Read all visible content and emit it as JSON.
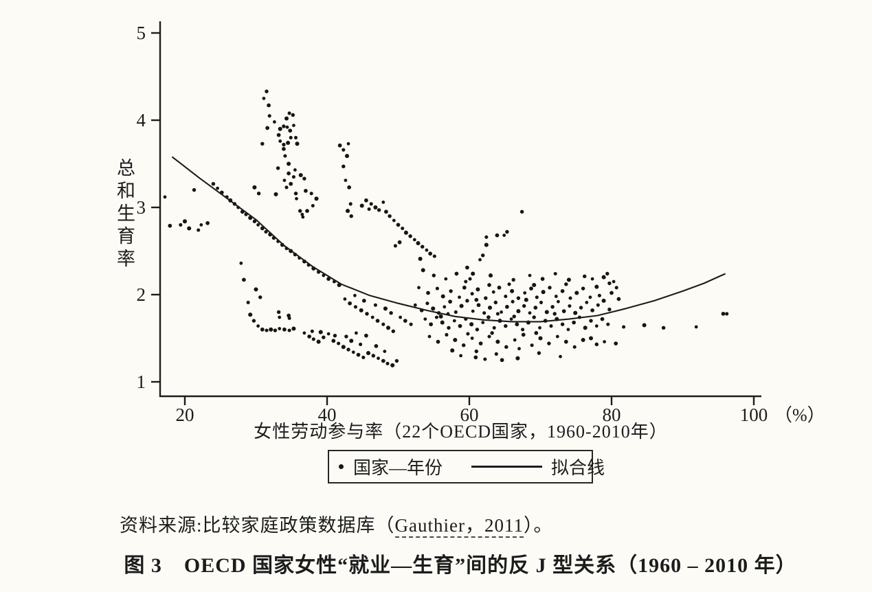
{
  "colors": {
    "paper": "#fcfbf6",
    "ink": "#1c1c1c",
    "dot": "#161616"
  },
  "chart_data": {
    "type": "scatter",
    "x_axis": {
      "label": "女性劳动参与率（22个OECD国家，1960-2010年）",
      "unit": "（%）",
      "ticks": [
        20,
        40,
        60,
        80,
        100
      ],
      "range": [
        16.5,
        101
      ]
    },
    "y_axis": {
      "label": "总和生育率",
      "ticks": [
        1,
        2,
        3,
        4,
        5
      ],
      "range": [
        0.83,
        5.12
      ]
    },
    "legend": [
      {
        "marker": "dot",
        "label": "国家—年份"
      },
      {
        "marker": "line",
        "label": "拟合线"
      }
    ],
    "fitted_curve": [
      [
        18.2,
        3.58
      ],
      [
        22,
        3.34
      ],
      [
        26,
        3.1
      ],
      [
        30,
        2.86
      ],
      [
        34,
        2.56
      ],
      [
        38,
        2.32
      ],
      [
        42,
        2.12
      ],
      [
        46,
        1.99
      ],
      [
        50,
        1.9
      ],
      [
        54,
        1.82
      ],
      [
        58,
        1.75
      ],
      [
        62,
        1.71
      ],
      [
        66,
        1.69
      ],
      [
        70,
        1.69
      ],
      [
        74,
        1.72
      ],
      [
        78,
        1.76
      ],
      [
        82,
        1.84
      ],
      [
        86,
        1.93
      ],
      [
        90,
        2.04
      ],
      [
        93,
        2.13
      ],
      [
        96,
        2.24
      ]
    ],
    "scatter_points": [
      [
        17.2,
        3.12
      ],
      [
        17.9,
        2.79
      ],
      [
        19.4,
        2.8
      ],
      [
        20.6,
        2.76
      ],
      [
        21.3,
        3.2
      ],
      [
        22.3,
        2.8
      ],
      [
        23.2,
        2.82
      ],
      [
        21.9,
        2.74
      ],
      [
        20.0,
        2.84
      ],
      [
        24.0,
        3.27
      ],
      [
        24.6,
        3.22
      ],
      [
        25.2,
        3.17
      ],
      [
        25.9,
        3.12
      ],
      [
        26.4,
        3.08
      ],
      [
        27.0,
        3.04
      ],
      [
        27.5,
        3.0
      ],
      [
        28.1,
        2.95
      ],
      [
        28.6,
        2.92
      ],
      [
        29.2,
        2.88
      ],
      [
        29.8,
        2.84
      ],
      [
        30.3,
        2.8
      ],
      [
        30.9,
        2.76
      ],
      [
        31.4,
        2.72
      ],
      [
        32.0,
        2.69
      ],
      [
        32.5,
        2.65
      ],
      [
        33.1,
        2.61
      ],
      [
        33.7,
        2.57
      ],
      [
        34.3,
        2.53
      ],
      [
        34.9,
        2.5
      ],
      [
        35.5,
        2.46
      ],
      [
        36.1,
        2.42
      ],
      [
        36.8,
        2.38
      ],
      [
        37.4,
        2.34
      ],
      [
        38.1,
        2.3
      ],
      [
        38.8,
        2.26
      ],
      [
        39.5,
        2.22
      ],
      [
        40.2,
        2.18
      ],
      [
        41.0,
        2.15
      ],
      [
        41.7,
        2.11
      ],
      [
        31.5,
        4.33
      ],
      [
        31.1,
        4.25
      ],
      [
        31.8,
        4.17
      ],
      [
        31.9,
        4.05
      ],
      [
        34.3,
        4.02
      ],
      [
        35.2,
        4.06
      ],
      [
        35.3,
        3.94
      ],
      [
        31.6,
        3.91
      ],
      [
        34.7,
        4.08
      ],
      [
        33.4,
        3.9
      ],
      [
        33.9,
        3.93
      ],
      [
        34.4,
        3.92
      ],
      [
        34.8,
        3.88
      ],
      [
        34.9,
        3.8
      ],
      [
        34.5,
        3.74
      ],
      [
        33.9,
        3.72
      ],
      [
        33.4,
        3.76
      ],
      [
        33.2,
        3.83
      ],
      [
        35.6,
        3.8
      ],
      [
        35.8,
        3.73
      ],
      [
        30.9,
        3.73
      ],
      [
        32.6,
        3.98
      ],
      [
        33.9,
        3.67
      ],
      [
        34.1,
        3.59
      ],
      [
        34.6,
        3.5
      ],
      [
        33.1,
        3.45
      ],
      [
        35.5,
        3.43
      ],
      [
        34.6,
        3.39
      ],
      [
        35.3,
        3.35
      ],
      [
        36.3,
        3.37
      ],
      [
        36.8,
        3.33
      ],
      [
        34.0,
        3.31
      ],
      [
        34.9,
        3.27
      ],
      [
        34.3,
        3.23
      ],
      [
        32.8,
        3.15
      ],
      [
        35.6,
        3.16
      ],
      [
        35.7,
        3.1
      ],
      [
        37.0,
        3.19
      ],
      [
        37.8,
        3.16
      ],
      [
        38.5,
        3.1
      ],
      [
        36.2,
        2.96
      ],
      [
        36.5,
        2.92
      ],
      [
        37.2,
        2.96
      ],
      [
        38.0,
        3.02
      ],
      [
        29.8,
        3.23
      ],
      [
        30.4,
        3.16
      ],
      [
        36.6,
        2.89
      ],
      [
        41.8,
        3.71
      ],
      [
        42.3,
        3.66
      ],
      [
        42.8,
        3.59
      ],
      [
        42.3,
        3.47
      ],
      [
        42.6,
        3.31
      ],
      [
        43.1,
        3.23
      ],
      [
        43.3,
        3.04
      ],
      [
        42.9,
        2.96
      ],
      [
        43.4,
        2.9
      ],
      [
        43.0,
        3.73
      ],
      [
        45.5,
        3.08
      ],
      [
        46.2,
        3.04
      ],
      [
        46.8,
        3.0
      ],
      [
        47.3,
        2.97
      ],
      [
        47.9,
        3.06
      ],
      [
        48.3,
        2.95
      ],
      [
        45.9,
        2.98
      ],
      [
        44.9,
        3.02
      ],
      [
        48.8,
        2.9
      ],
      [
        49.4,
        2.85
      ],
      [
        50.0,
        2.8
      ],
      [
        50.6,
        2.76
      ],
      [
        51.1,
        2.71
      ],
      [
        51.7,
        2.67
      ],
      [
        52.3,
        2.63
      ],
      [
        50.2,
        2.6
      ],
      [
        49.6,
        2.56
      ],
      [
        52.8,
        2.59
      ],
      [
        53.4,
        2.55
      ],
      [
        54.0,
        2.51
      ],
      [
        54.5,
        2.47
      ],
      [
        55.1,
        2.44
      ],
      [
        53.1,
        2.41
      ],
      [
        65.3,
        2.72
      ],
      [
        64.9,
        2.68
      ],
      [
        63.9,
        2.68
      ],
      [
        62.4,
        2.66
      ],
      [
        62.4,
        2.57
      ],
      [
        61.9,
        2.45
      ],
      [
        61.5,
        2.4
      ],
      [
        59.7,
        2.31
      ],
      [
        59.5,
        2.15
      ],
      [
        60.5,
        2.24
      ],
      [
        67.4,
        2.95
      ],
      [
        27.9,
        2.36
      ],
      [
        28.3,
        2.17
      ],
      [
        28.9,
        1.91
      ],
      [
        29.2,
        1.77
      ],
      [
        29.7,
        1.7
      ],
      [
        30.3,
        1.64
      ],
      [
        30.9,
        1.6
      ],
      [
        31.5,
        1.59
      ],
      [
        32.1,
        1.6
      ],
      [
        32.7,
        1.59
      ],
      [
        33.3,
        1.61
      ],
      [
        34.0,
        1.6
      ],
      [
        34.7,
        1.59
      ],
      [
        35.3,
        1.61
      ],
      [
        33.2,
        1.8
      ],
      [
        33.3,
        1.74
      ],
      [
        34.6,
        1.76
      ],
      [
        34.7,
        1.73
      ],
      [
        30.0,
        2.06
      ],
      [
        30.6,
        1.97
      ],
      [
        36.8,
        1.56
      ],
      [
        37.5,
        1.52
      ],
      [
        38.1,
        1.49
      ],
      [
        38.8,
        1.46
      ],
      [
        39.5,
        1.51
      ],
      [
        40.2,
        1.55
      ],
      [
        40.9,
        1.47
      ],
      [
        41.6,
        1.44
      ],
      [
        42.3,
        1.4
      ],
      [
        43.0,
        1.37
      ],
      [
        43.7,
        1.34
      ],
      [
        44.4,
        1.31
      ],
      [
        45.1,
        1.28
      ],
      [
        45.8,
        1.33
      ],
      [
        46.5,
        1.3
      ],
      [
        47.2,
        1.27
      ],
      [
        47.9,
        1.24
      ],
      [
        48.5,
        1.21
      ],
      [
        49.2,
        1.19
      ],
      [
        49.8,
        1.24
      ],
      [
        48.1,
        1.35
      ],
      [
        46.9,
        1.41
      ],
      [
        44.7,
        1.43
      ],
      [
        43.4,
        1.47
      ],
      [
        42.7,
        1.52
      ],
      [
        44.1,
        1.56
      ],
      [
        45.5,
        1.53
      ],
      [
        37.9,
        1.58
      ],
      [
        39.1,
        1.57
      ],
      [
        41.1,
        1.53
      ],
      [
        42.5,
        1.95
      ],
      [
        43.2,
        1.9
      ],
      [
        44.0,
        1.86
      ],
      [
        44.8,
        1.82
      ],
      [
        45.6,
        1.78
      ],
      [
        46.4,
        1.74
      ],
      [
        47.1,
        1.7
      ],
      [
        47.9,
        1.66
      ],
      [
        48.6,
        1.62
      ],
      [
        49.3,
        1.58
      ],
      [
        43.9,
        1.99
      ],
      [
        45.2,
        1.93
      ],
      [
        46.8,
        1.88
      ],
      [
        48.2,
        1.84
      ],
      [
        49.0,
        1.79
      ],
      [
        50.3,
        1.74
      ],
      [
        51.0,
        1.7
      ],
      [
        51.8,
        1.66
      ],
      [
        53.5,
        2.28
      ],
      [
        55.0,
        2.22
      ],
      [
        56.7,
        2.18
      ],
      [
        58.2,
        2.24
      ],
      [
        60.1,
        2.18
      ],
      [
        63.0,
        2.22
      ],
      [
        66.2,
        2.17
      ],
      [
        68.5,
        2.22
      ],
      [
        70.3,
        2.18
      ],
      [
        72.1,
        2.24
      ],
      [
        74.0,
        2.17
      ],
      [
        76.2,
        2.21
      ],
      [
        52.9,
        2.08
      ],
      [
        54.2,
        2.02
      ],
      [
        55.5,
        2.07
      ],
      [
        56.3,
        1.98
      ],
      [
        57.4,
        2.04
      ],
      [
        58.6,
        1.97
      ],
      [
        59.3,
        2.08
      ],
      [
        60.4,
        2.01
      ],
      [
        61.2,
        2.06
      ],
      [
        62.3,
        1.96
      ],
      [
        63.4,
        2.03
      ],
      [
        64.2,
        2.08
      ],
      [
        65.1,
        1.98
      ],
      [
        66.0,
        2.04
      ],
      [
        66.9,
        1.96
      ],
      [
        67.8,
        2.02
      ],
      [
        68.7,
        2.07
      ],
      [
        69.5,
        1.97
      ],
      [
        70.4,
        2.03
      ],
      [
        71.3,
        2.08
      ],
      [
        72.2,
        1.98
      ],
      [
        73.1,
        2.04
      ],
      [
        74.2,
        1.96
      ],
      [
        75.1,
        2.02
      ],
      [
        76.0,
        2.07
      ],
      [
        77.0,
        1.97
      ],
      [
        62.8,
        2.11
      ],
      [
        65.6,
        2.12
      ],
      [
        69.1,
        2.11
      ],
      [
        73.6,
        2.12
      ],
      [
        52.4,
        1.88
      ],
      [
        53.3,
        1.82
      ],
      [
        54.1,
        1.9
      ],
      [
        54.9,
        1.84
      ],
      [
        55.7,
        1.79
      ],
      [
        56.5,
        1.86
      ],
      [
        57.3,
        1.92
      ],
      [
        58.1,
        1.8
      ],
      [
        58.9,
        1.87
      ],
      [
        59.7,
        1.93
      ],
      [
        60.5,
        1.81
      ],
      [
        61.3,
        1.88
      ],
      [
        62.1,
        1.79
      ],
      [
        62.9,
        1.85
      ],
      [
        63.7,
        1.91
      ],
      [
        64.5,
        1.8
      ],
      [
        65.3,
        1.86
      ],
      [
        66.1,
        1.92
      ],
      [
        66.9,
        1.81
      ],
      [
        67.7,
        1.87
      ],
      [
        68.5,
        1.79
      ],
      [
        69.3,
        1.85
      ],
      [
        70.1,
        1.91
      ],
      [
        70.9,
        1.8
      ],
      [
        71.7,
        1.86
      ],
      [
        72.5,
        1.92
      ],
      [
        73.3,
        1.81
      ],
      [
        74.1,
        1.87
      ],
      [
        74.9,
        1.79
      ],
      [
        75.7,
        1.85
      ],
      [
        76.5,
        1.91
      ],
      [
        77.3,
        1.82
      ],
      [
        78.1,
        1.88
      ],
      [
        78.9,
        1.93
      ],
      [
        79.7,
        1.83
      ],
      [
        57.0,
        1.78
      ],
      [
        61.0,
        1.94
      ],
      [
        64.0,
        1.78
      ],
      [
        68.0,
        1.94
      ],
      [
        72.0,
        1.78
      ],
      [
        53.8,
        1.72
      ],
      [
        54.6,
        1.66
      ],
      [
        55.4,
        1.74
      ],
      [
        56.2,
        1.68
      ],
      [
        57.1,
        1.62
      ],
      [
        57.9,
        1.7
      ],
      [
        58.7,
        1.64
      ],
      [
        59.5,
        1.72
      ],
      [
        60.3,
        1.66
      ],
      [
        61.1,
        1.6
      ],
      [
        61.9,
        1.68
      ],
      [
        62.7,
        1.74
      ],
      [
        63.5,
        1.62
      ],
      [
        64.3,
        1.7
      ],
      [
        65.1,
        1.64
      ],
      [
        65.9,
        1.72
      ],
      [
        66.7,
        1.66
      ],
      [
        67.5,
        1.6
      ],
      [
        68.3,
        1.68
      ],
      [
        69.1,
        1.74
      ],
      [
        69.9,
        1.62
      ],
      [
        70.7,
        1.7
      ],
      [
        71.5,
        1.64
      ],
      [
        72.3,
        1.72
      ],
      [
        73.1,
        1.66
      ],
      [
        73.9,
        1.6
      ],
      [
        74.7,
        1.68
      ],
      [
        75.5,
        1.74
      ],
      [
        76.3,
        1.62
      ],
      [
        77.1,
        1.7
      ],
      [
        77.9,
        1.64
      ],
      [
        78.7,
        1.72
      ],
      [
        79.5,
        1.66
      ],
      [
        56.0,
        1.75
      ],
      [
        66.3,
        1.75
      ],
      [
        54.4,
        1.52
      ],
      [
        55.6,
        1.46
      ],
      [
        56.8,
        1.54
      ],
      [
        58.0,
        1.48
      ],
      [
        59.2,
        1.42
      ],
      [
        60.4,
        1.5
      ],
      [
        61.6,
        1.44
      ],
      [
        62.8,
        1.52
      ],
      [
        64.0,
        1.46
      ],
      [
        65.2,
        1.4
      ],
      [
        66.4,
        1.48
      ],
      [
        67.6,
        1.54
      ],
      [
        68.8,
        1.42
      ],
      [
        70.0,
        1.5
      ],
      [
        71.2,
        1.44
      ],
      [
        72.4,
        1.52
      ],
      [
        73.6,
        1.46
      ],
      [
        74.8,
        1.4
      ],
      [
        76.0,
        1.48
      ],
      [
        63.2,
        1.56
      ],
      [
        67.0,
        1.38
      ],
      [
        69.4,
        1.56
      ],
      [
        59.8,
        1.55
      ],
      [
        57.6,
        1.36
      ],
      [
        61.0,
        1.35
      ],
      [
        58.8,
        1.3
      ],
      [
        60.9,
        1.28
      ],
      [
        63.8,
        1.32
      ],
      [
        66.8,
        1.27
      ],
      [
        69.8,
        1.33
      ],
      [
        72.8,
        1.29
      ],
      [
        64.6,
        1.25
      ],
      [
        62.2,
        1.26
      ],
      [
        77.9,
        2.09
      ],
      [
        79.7,
        2.13
      ],
      [
        80.3,
        2.15
      ],
      [
        80.0,
        2.02
      ],
      [
        78.3,
        1.99
      ],
      [
        78.9,
        2.2
      ],
      [
        79.4,
        2.24
      ],
      [
        77.3,
        2.18
      ],
      [
        81.0,
        1.95
      ],
      [
        80.7,
        2.08
      ],
      [
        77.1,
        1.5
      ],
      [
        77.9,
        1.43
      ],
      [
        79.0,
        1.46
      ],
      [
        80.6,
        1.44
      ],
      [
        81.7,
        1.63
      ],
      [
        84.6,
        1.65
      ],
      [
        87.3,
        1.62
      ],
      [
        91.9,
        1.63
      ],
      [
        95.7,
        1.78
      ],
      [
        96.2,
        1.78
      ]
    ]
  },
  "source": {
    "prefix": "资料来源:比较家庭政策数据库（",
    "cited": "Gauthier，2011",
    "suffix": "）。"
  },
  "caption": {
    "label": "图 3",
    "text": "OECD 国家女性“就业—生育”间的反 J 型关系（1960 – 2010 年）"
  }
}
